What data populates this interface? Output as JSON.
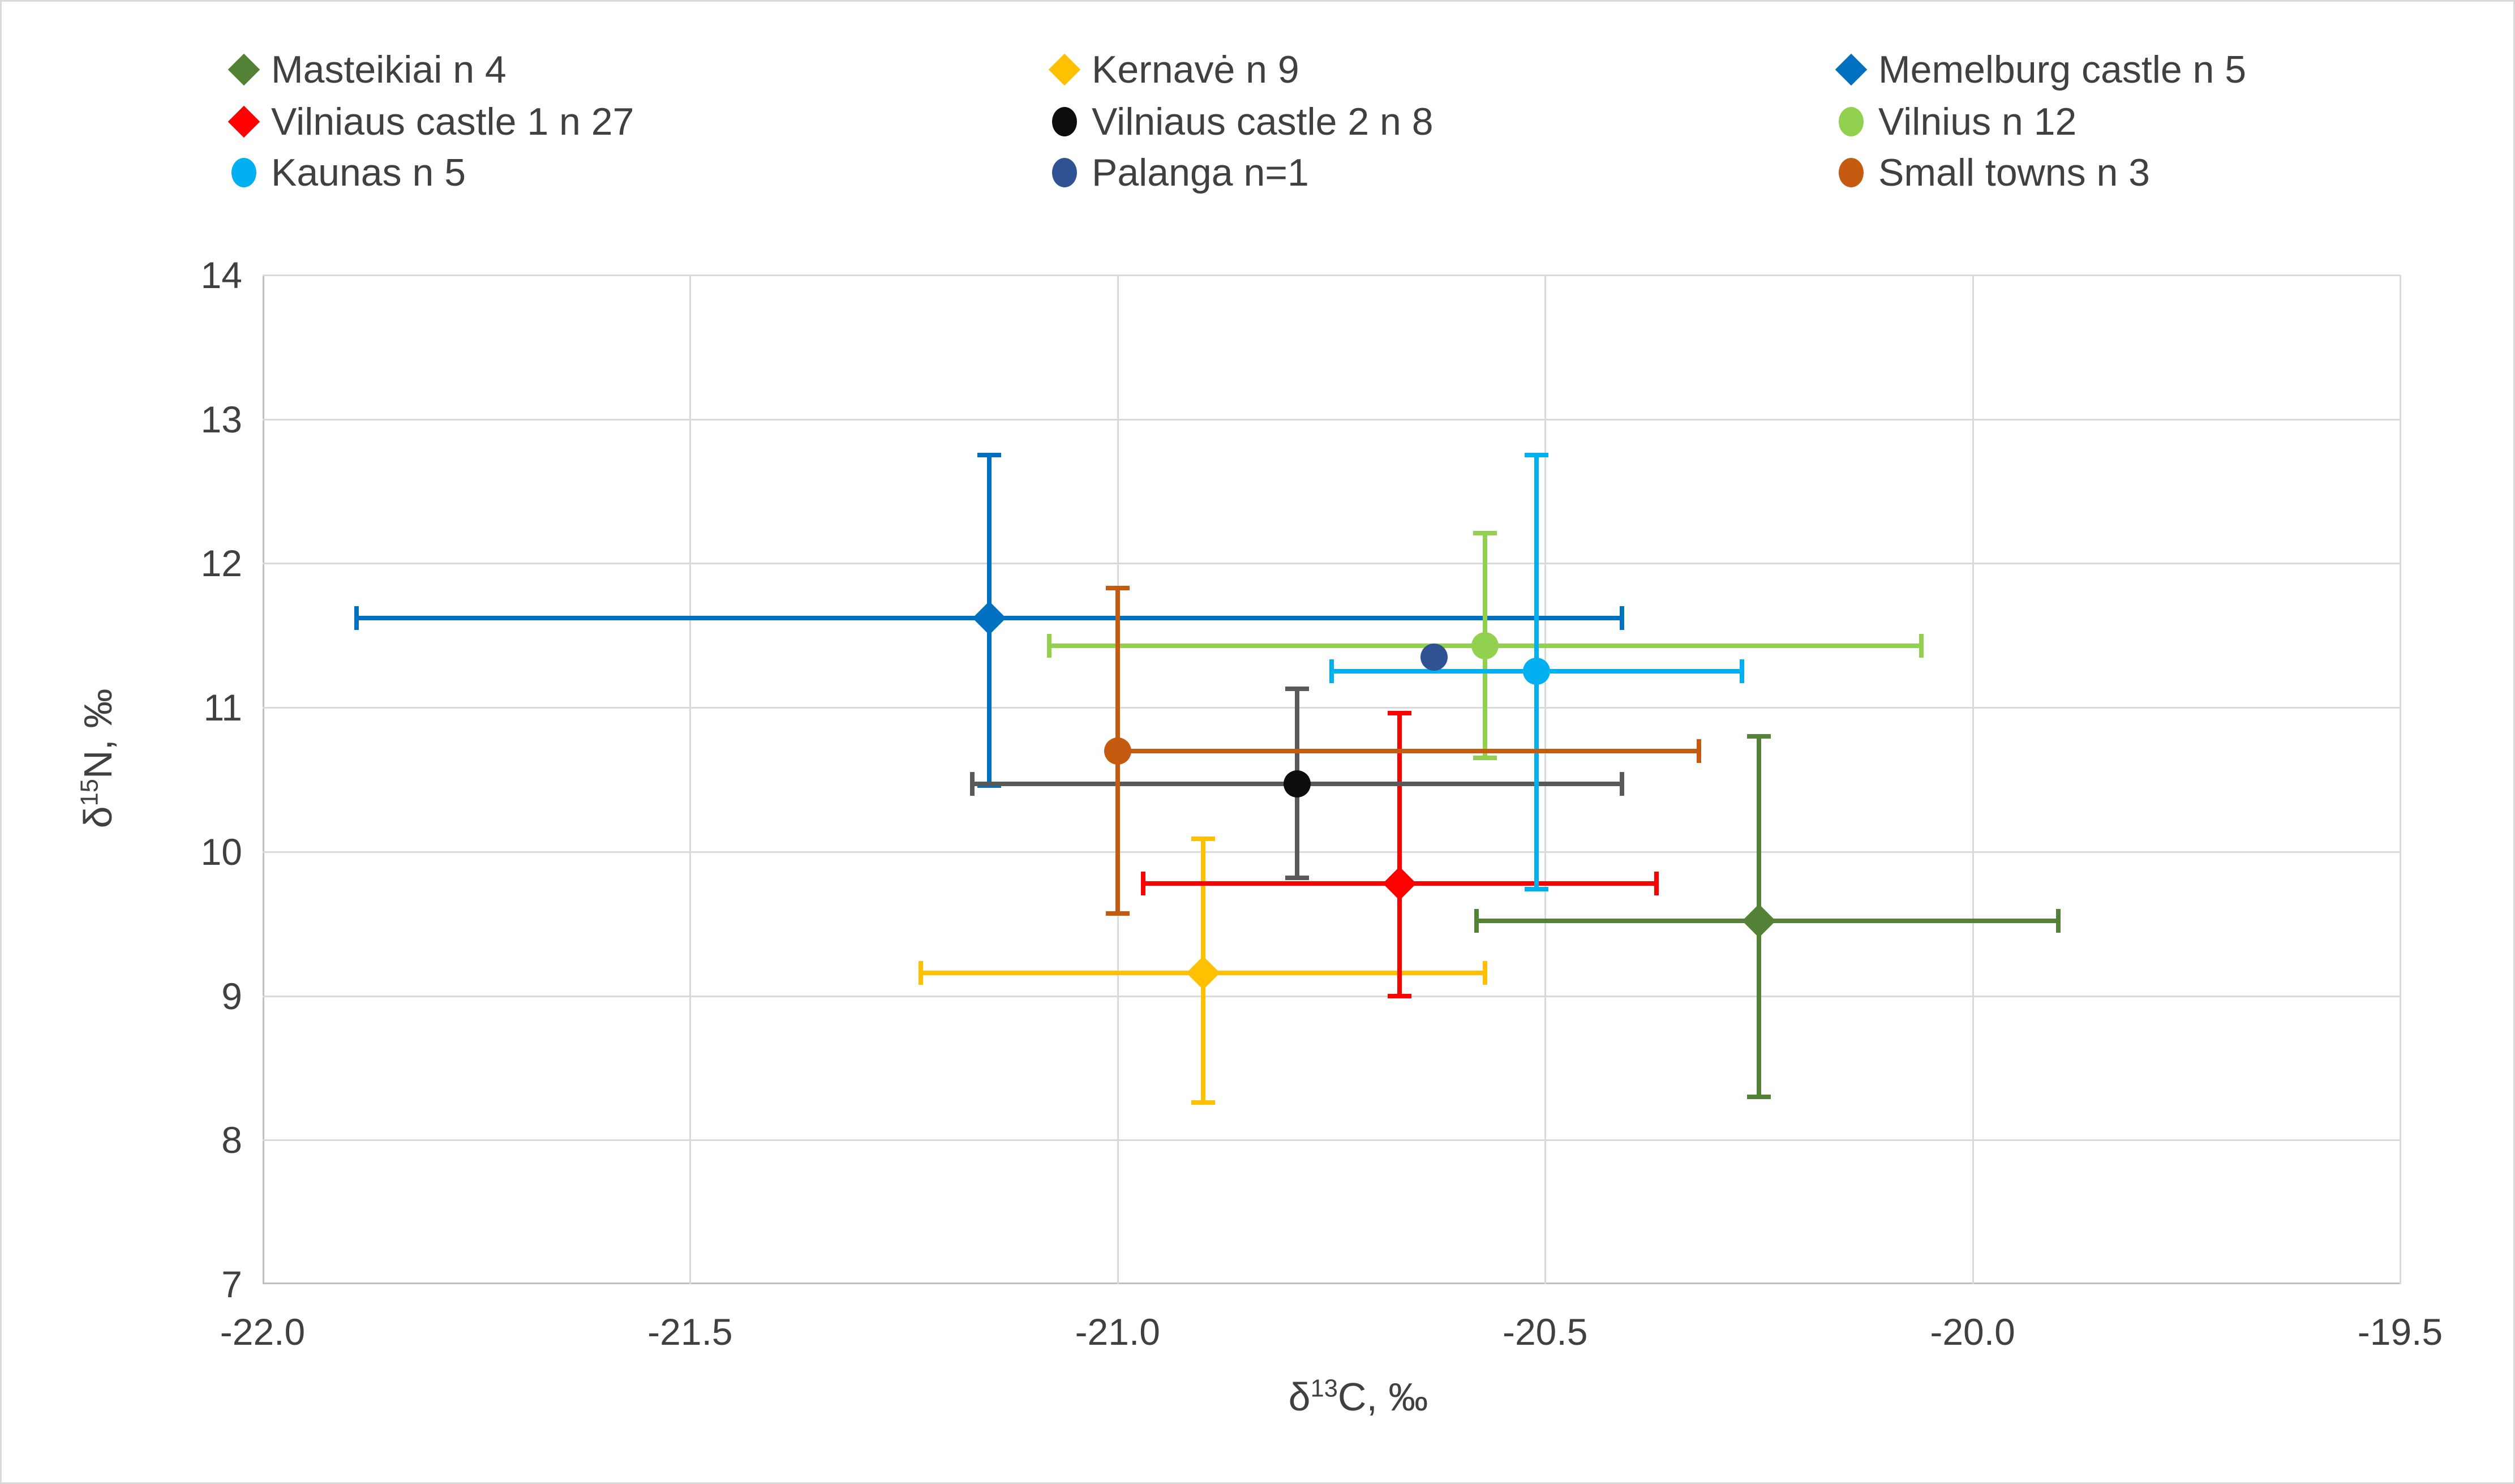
{
  "chart_data": {
    "type": "scatter",
    "title": "",
    "xlabel": {
      "prefix": "δ",
      "sup": "13",
      "suffix": "C, ‰"
    },
    "ylabel": {
      "prefix": "δ",
      "sup": "15",
      "suffix": "N, ‰"
    },
    "xlim": [
      -22.0,
      -19.5
    ],
    "ylim": [
      7,
      14
    ],
    "x_ticks": [
      "-22.0",
      "-21.5",
      "-21.0",
      "-20.5",
      "-20.0",
      "-19.5"
    ],
    "y_ticks": [
      "14",
      "13",
      "12",
      "11",
      "10",
      "9",
      "8",
      "7"
    ],
    "grid": true,
    "legend_position": "top",
    "legend_columns": 3,
    "axis_color": "#bfbfbf",
    "gridline_color": "#d9d9d9",
    "text_color": "#404040",
    "series": [
      {
        "name": "Masteikiai n 4",
        "marker": "diamond",
        "color": "#538135",
        "x": -20.25,
        "y": 9.52,
        "x_range": [
          -20.58,
          -19.9
        ],
        "y_range": [
          8.3,
          10.8
        ]
      },
      {
        "name": "Kernavė n 9",
        "marker": "diamond",
        "color": "#FFC000",
        "x": -20.9,
        "y": 9.16,
        "x_range": [
          -21.23,
          -20.57
        ],
        "y_range": [
          8.26,
          10.09
        ]
      },
      {
        "name": "Memelburg castle n 5",
        "marker": "diamond",
        "color": "#0070C0",
        "x": -21.15,
        "y": 11.62,
        "x_range": [
          -21.89,
          -20.41
        ],
        "y_range": [
          10.46,
          12.75
        ]
      },
      {
        "name": "Vilniaus castle 1 n 27",
        "marker": "diamond",
        "color": "#FF0000",
        "x": -20.67,
        "y": 9.78,
        "x_range": [
          -20.97,
          -20.37
        ],
        "y_range": [
          9.0,
          10.96
        ]
      },
      {
        "name": "Vilniaus castle 2 n 8",
        "marker": "circle",
        "color": "#0d0d0d",
        "line_color": "#595959",
        "x": -20.79,
        "y": 10.47,
        "x_range": [
          -21.17,
          -20.41
        ],
        "y_range": [
          9.82,
          11.13
        ]
      },
      {
        "name": "Vilnius n 12",
        "marker": "circle",
        "color": "#92D050",
        "x": -20.57,
        "y": 11.43,
        "x_range": [
          -21.08,
          -20.06
        ],
        "y_range": [
          10.65,
          12.21
        ]
      },
      {
        "name": "Kaunas n 5",
        "marker": "circle",
        "color": "#00B0F0",
        "x": -20.51,
        "y": 11.25,
        "x_range": [
          -20.75,
          -20.27
        ],
        "y_range": [
          9.74,
          12.75
        ]
      },
      {
        "name": "Palanga n=1",
        "marker": "circle",
        "color": "#2F5292",
        "x": -20.63,
        "y": 11.35,
        "x_range": null,
        "y_range": null
      },
      {
        "name": "Small towns n 3",
        "marker": "circle",
        "color": "#C55A11",
        "x": -21.0,
        "y": 10.7,
        "x_range": [
          -21.0,
          -20.32
        ],
        "y_range": [
          9.57,
          11.83
        ]
      }
    ]
  }
}
